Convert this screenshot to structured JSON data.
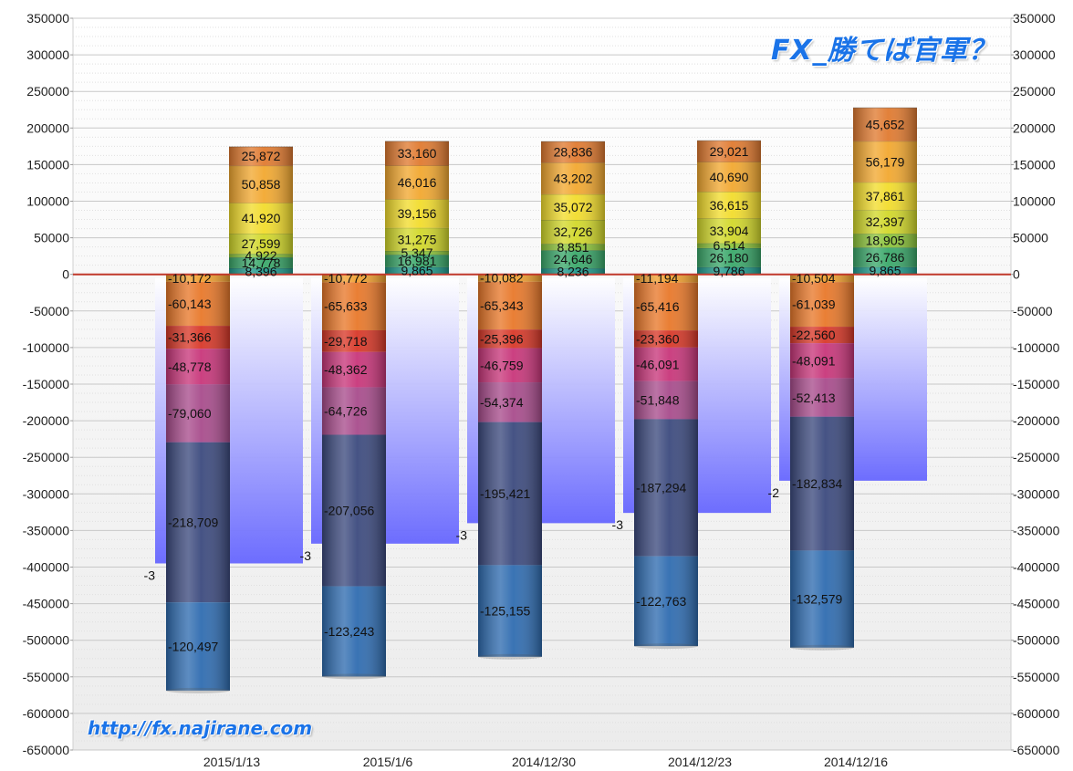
{
  "overlay": {
    "title": "FX_勝てば官軍？",
    "url": "http://fx.najirane.com"
  },
  "chart_data": {
    "type": "bar",
    "categories": [
      "2015/1/13",
      "2015/1/6",
      "2014/12/30",
      "2014/12/23",
      "2014/12/16"
    ],
    "ylim": [
      -650000,
      350000
    ],
    "y_ticks": [
      350000,
      300000,
      250000,
      200000,
      150000,
      100000,
      50000,
      0,
      -50000,
      -100000,
      -150000,
      -200000,
      -250000,
      -300000,
      -350000,
      -400000,
      -450000,
      -500000,
      -550000,
      -600000,
      -650000
    ],
    "grid": true,
    "axes": "left-and-right",
    "zero_line_color": "#c0392b",
    "background_totals": [
      -395000,
      -368000,
      -340000,
      -326000,
      -282000
    ],
    "background_total_labels": [
      "-3",
      "-3",
      "-3",
      "-3",
      "-2"
    ],
    "negative_series": [
      {
        "values": [
          -10172,
          -10772,
          -10082,
          -11194,
          -10504
        ],
        "labels": [
          "-10,172",
          "-10,772",
          "-10,082",
          "-11,194",
          "-10,504"
        ],
        "color": "#f0a030"
      },
      {
        "values": [
          -60143,
          -65633,
          -65343,
          -65416,
          -61039
        ],
        "labels": [
          "-60,143",
          "-65,633",
          "-65,343",
          "-65,416",
          "-61,039"
        ],
        "color": "#e8782a"
      },
      {
        "values": [
          -31366,
          -29718,
          -25396,
          -23360,
          -22560
        ],
        "labels": [
          "-31,366",
          "-29,718",
          "-25,396",
          "-23,360",
          "-22,560"
        ],
        "color": "#d83828"
      },
      {
        "values": [
          -48778,
          -48362,
          -46759,
          -46091,
          -48091
        ],
        "labels": [
          "-48,778",
          "-48,362",
          "-46,759",
          "-46,091",
          "-48,091"
        ],
        "color": "#c8367a"
      },
      {
        "values": [
          -79060,
          -64726,
          -54374,
          -51848,
          -52413
        ],
        "labels": [
          "-79,060",
          "-64,726",
          "-54,374",
          "-51,848",
          "-52,413"
        ],
        "color": "#a84c8c"
      },
      {
        "values": [
          -218709,
          -207056,
          -195421,
          -187294,
          -182834
        ],
        "labels": [
          "-218,709",
          "-207,056",
          "-195,421",
          "-187,294",
          "-182,834"
        ],
        "color": "#3c4a7e"
      },
      {
        "values": [
          -120497,
          -123243,
          -125155,
          -122763,
          -132579
        ],
        "labels": [
          "-120,497",
          "-123,243",
          "-125,155",
          "-122,763",
          "-132,579"
        ],
        "color": "#2f6cb0"
      }
    ],
    "positive_series": [
      {
        "values": [
          8396,
          9865,
          8236,
          9786,
          9865
        ],
        "labels": [
          "8,396",
          "9,865",
          "8,236",
          "9,786",
          "9,865"
        ],
        "color": "#1f9a8c"
      },
      {
        "values": [
          14778,
          16981,
          24646,
          26180,
          26786
        ],
        "labels": [
          "14,778",
          "16,981",
          "24,646",
          "26,180",
          "26,786"
        ],
        "color": "#3aa86a"
      },
      {
        "values": [
          4922,
          5347,
          8851,
          6514,
          18905
        ],
        "labels": [
          "4,922",
          "5,347",
          "8,851",
          "6,514",
          "18,905"
        ],
        "color": "#8cc43a"
      },
      {
        "values": [
          27599,
          31275,
          32726,
          33904,
          32397
        ],
        "labels": [
          "27,599",
          "31,275",
          "32,726",
          "33,904",
          "32,397"
        ],
        "color": "#d2d82a"
      },
      {
        "values": [
          41920,
          39156,
          35072,
          36615,
          37861
        ],
        "labels": [
          "41,920",
          "39,156",
          "35,072",
          "36,615",
          "37,861"
        ],
        "color": "#f2dc2c"
      },
      {
        "values": [
          50858,
          46016,
          43202,
          40690,
          56179
        ],
        "labels": [
          "50,858",
          "46,016",
          "43,202",
          "40,690",
          "56,179"
        ],
        "color": "#f2a830"
      },
      {
        "values": [
          25872,
          33160,
          28836,
          29021,
          45652
        ],
        "labels": [
          "25,872",
          "33,160",
          "28,836",
          "29,021",
          "45,652"
        ],
        "color": "#e07a30"
      }
    ]
  }
}
